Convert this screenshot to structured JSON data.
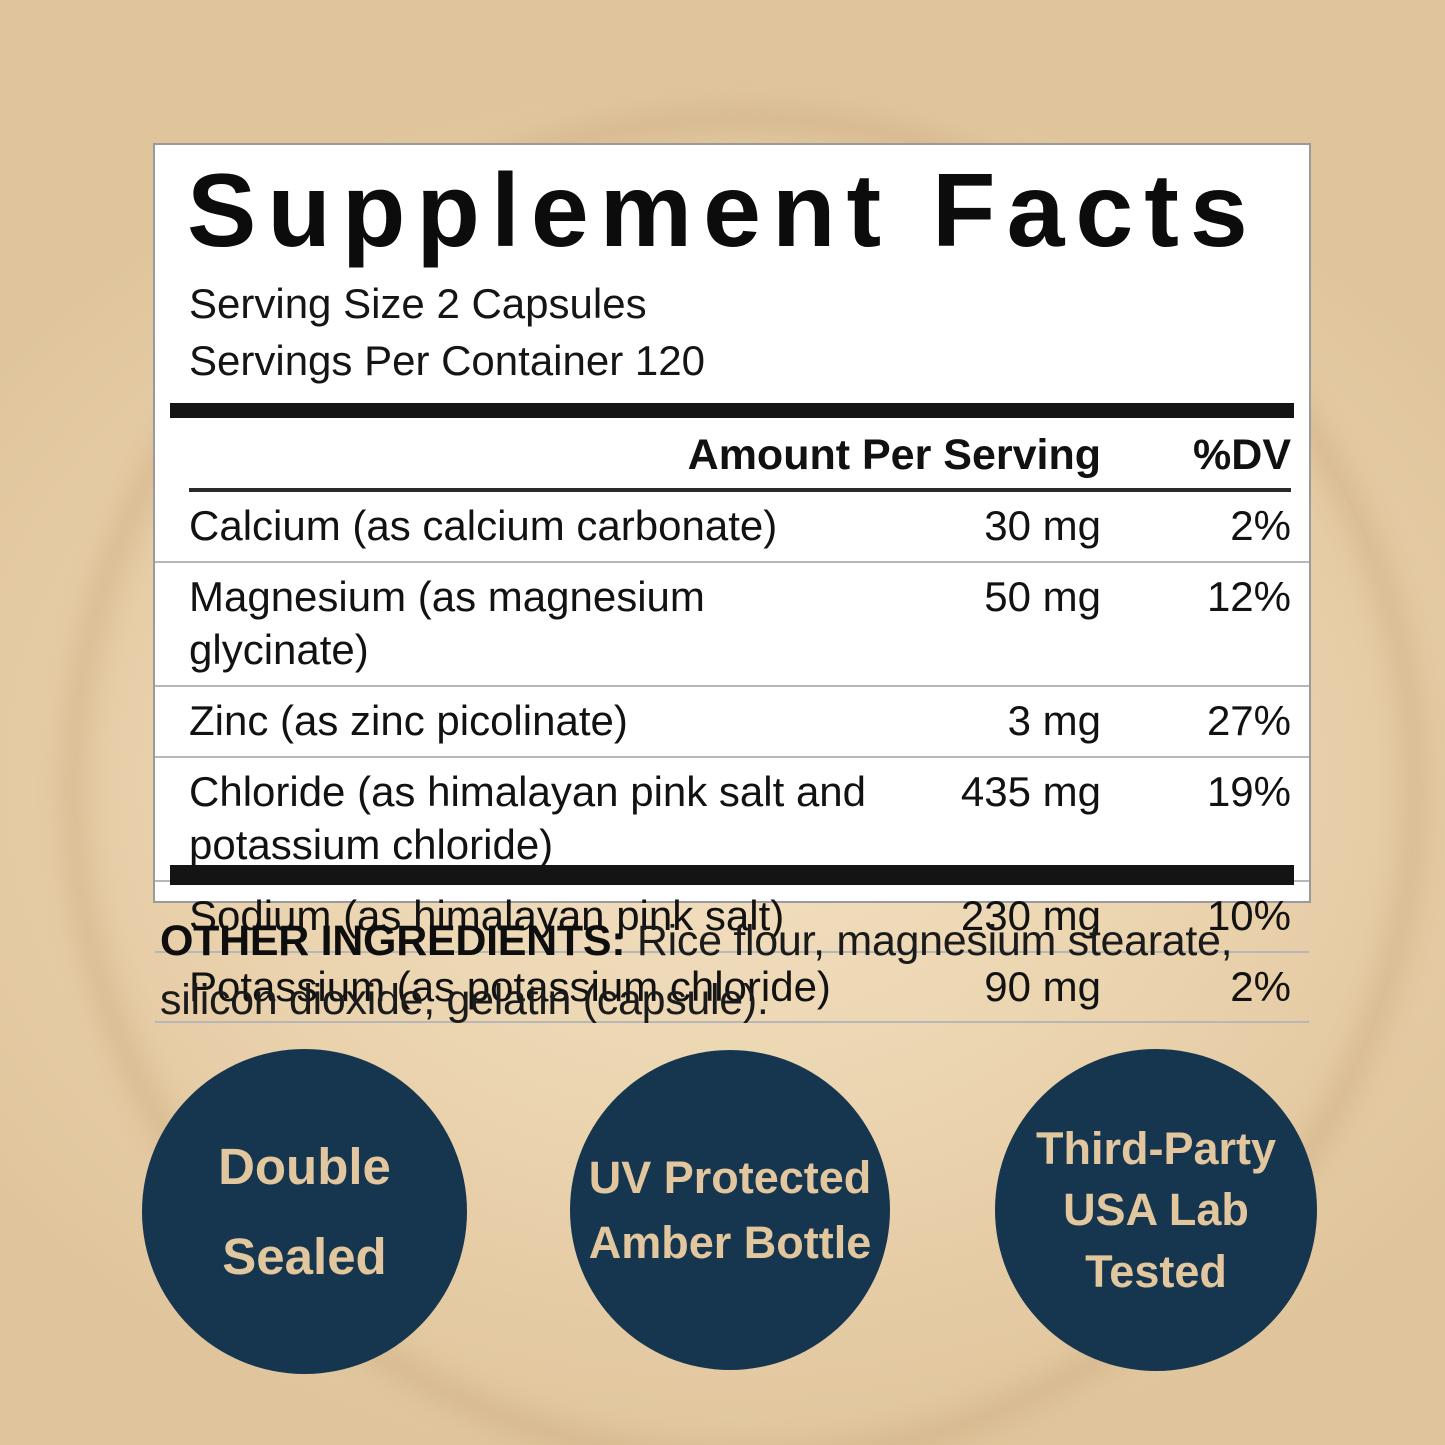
{
  "panel": {
    "title": "Supplement Facts",
    "serving_size": "Serving Size 2 Capsules",
    "servings_per_container": "Servings Per Container 120",
    "columns": {
      "amount": "Amount Per Serving",
      "dv": "%DV"
    },
    "rows": [
      {
        "name": "Calcium (as calcium carbonate)",
        "amount": "30 mg",
        "dv": "2%"
      },
      {
        "name": "Magnesium (as magnesium glycinate)",
        "amount": "50 mg",
        "dv": "12%"
      },
      {
        "name": "Zinc (as zinc picolinate)",
        "amount": "3 mg",
        "dv": "27%"
      },
      {
        "name": "Chloride (as himalayan pink salt and potassium chloride)",
        "amount": "435 mg",
        "dv": "19%"
      },
      {
        "name": "Sodium (as himalayan pink salt)",
        "amount": "230 mg",
        "dv": "10%"
      },
      {
        "name": "Potassium (as potassium chloride)",
        "amount": "90 mg",
        "dv": "2%"
      }
    ]
  },
  "other_ingredients": {
    "label": "OTHER INGREDIENTS:",
    "text": " Rice flour, magnesium stearate, silicon dioxide, gelatin (capsule)."
  },
  "badges": [
    {
      "lines": [
        "Double",
        "Sealed"
      ]
    },
    {
      "lines": [
        "UV Protected",
        "Amber Bottle"
      ]
    },
    {
      "lines": [
        "Third-Party",
        "USA Lab",
        "Tested"
      ]
    }
  ],
  "colors": {
    "background": "#ecd6b2",
    "panel": "#ffffff",
    "navy": "#15364e",
    "badge_text": "#e2c69e",
    "bar": "#141414"
  }
}
